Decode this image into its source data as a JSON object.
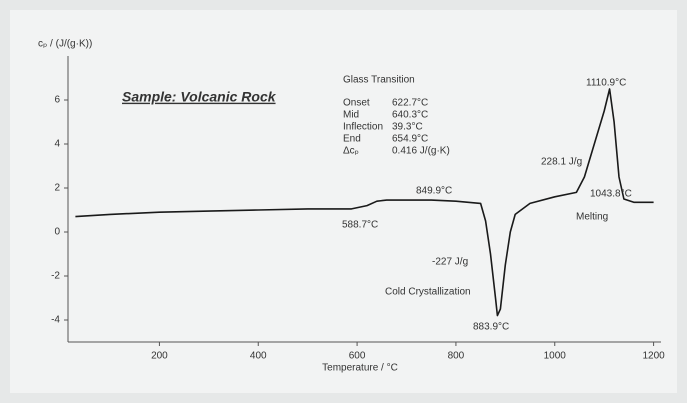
{
  "chart_data": {
    "type": "line",
    "title": "Sample: Volcanic Rock",
    "x_label": "Temperature / °C",
    "y_label": "cₚ / (J/(g·K))",
    "x": [
      30,
      100,
      200,
      300,
      400,
      500,
      588.7,
      620,
      640,
      660,
      700,
      750,
      800,
      849.9,
      860,
      870,
      880,
      883.9,
      890,
      900,
      910,
      920,
      950,
      1000,
      1043.8,
      1060,
      1080,
      1100,
      1110.9,
      1120,
      1130,
      1140,
      1160,
      1200
    ],
    "series": [
      {
        "name": "cₚ",
        "color": "#1a1a1a",
        "values": [
          0.7,
          0.8,
          0.9,
          0.95,
          1.0,
          1.05,
          1.05,
          1.2,
          1.4,
          1.45,
          1.45,
          1.45,
          1.4,
          1.3,
          0.5,
          -1,
          -3,
          -3.8,
          -3.5,
          -1.5,
          0,
          0.8,
          1.3,
          1.6,
          1.8,
          2.5,
          4,
          5.5,
          6.5,
          5,
          2.5,
          1.5,
          1.35,
          1.35
        ]
      }
    ],
    "xlim": [
      15,
      1215
    ],
    "xticks": [
      200,
      400,
      600,
      800,
      1000,
      1200
    ],
    "ylim": [
      -5,
      8
    ],
    "yticks": [
      -4,
      -2,
      0,
      2,
      4,
      6
    ],
    "glass_transition": {
      "heading": "Glass Transition",
      "labels": [
        "Onset",
        "Mid",
        "Inflection",
        "End",
        "Δcₚ"
      ],
      "values": [
        "622.7°C",
        "640.3°C",
        "39.3°C",
        "654.9°C",
        "0.416 J/(g·K)"
      ]
    },
    "annotations": [
      "588.7°C",
      "849.9°C",
      "-227 J/g",
      "Cold Crystallization",
      "883.9°C",
      "1110.9°C",
      "228.1 J/g",
      "1043.8°C",
      "Melting"
    ]
  }
}
